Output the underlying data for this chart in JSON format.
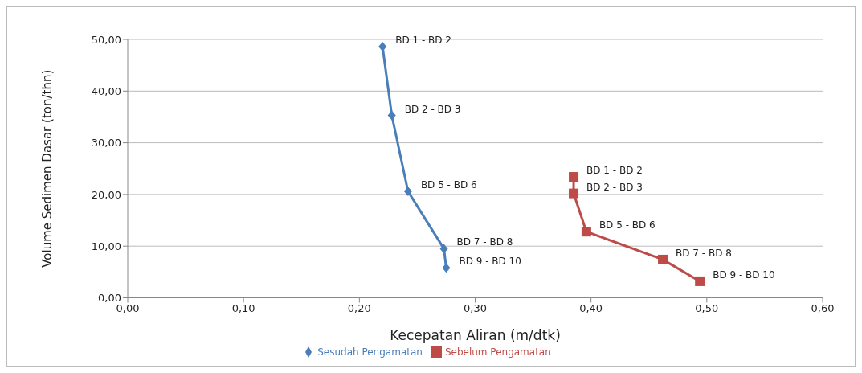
{
  "chart_data": {
    "type": "line",
    "xlabel": "Kecepatan Aliran  (m/dtk)",
    "ylabel": "Volume Sedimen Dasar (ton/thn)",
    "xlim": [
      0,
      0.6
    ],
    "xticks": [
      {
        "value": 0,
        "label": "0,00"
      },
      {
        "value": 0.1,
        "label": "0,10"
      },
      {
        "value": 0.2,
        "label": "0,20"
      },
      {
        "value": 0.3,
        "label": "0,30"
      },
      {
        "value": 0.4,
        "label": "0,40"
      },
      {
        "value": 0.5,
        "label": "0,50"
      },
      {
        "value": 0.6,
        "label": "0,60"
      }
    ],
    "ylim": [
      0,
      50
    ],
    "yticks": [
      {
        "value": 0,
        "label": "0,00"
      },
      {
        "value": 10,
        "label": "10,00"
      },
      {
        "value": 20,
        "label": "20,00"
      },
      {
        "value": 30,
        "label": "30,00"
      },
      {
        "value": 40,
        "label": "40,00"
      },
      {
        "value": 50,
        "label": "50,00"
      }
    ],
    "grid": "y",
    "legend": "bottom",
    "line_style": "solid",
    "series": [
      {
        "name": "Sesudah Pengamatan",
        "color": "#4a7ebb",
        "marker": "diamond",
        "x": [
          0.22,
          0.228,
          0.242,
          0.273,
          0.275
        ],
        "values": [
          48.6,
          35.3,
          20.6,
          9.5,
          5.8
        ]
      },
      {
        "name": "Sebelum Pengamatan",
        "color": "#be4b48",
        "marker": "square",
        "x": [
          0.385,
          0.385,
          0.396,
          0.462,
          0.494
        ],
        "values": [
          23.4,
          20.2,
          12.8,
          7.4,
          3.2
        ]
      }
    ],
    "annotations": [
      {
        "text": "BD 1 - BD 2",
        "x": 0.22,
        "y": 48.6
      },
      {
        "text": "BD 2 - BD 3",
        "x": 0.228,
        "y": 35.3
      },
      {
        "text": "BD 5 - BD 6",
        "x": 0.242,
        "y": 20.6
      },
      {
        "text": "BD 7 - BD 8",
        "x": 0.273,
        "y": 9.5
      },
      {
        "text": "BD 9 - BD 10",
        "x": 0.275,
        "y": 5.8
      },
      {
        "text": "BD 1 - BD 2",
        "x": 0.385,
        "y": 23.4
      },
      {
        "text": "BD 2 - BD 3",
        "x": 0.385,
        "y": 20.2
      },
      {
        "text": "BD 5 - BD 6",
        "x": 0.396,
        "y": 12.8
      },
      {
        "text": "BD 7 - BD  8",
        "x": 0.462,
        "y": 7.4
      },
      {
        "text": "BD 9 - BD 10",
        "x": 0.494,
        "y": 3.2
      }
    ]
  }
}
